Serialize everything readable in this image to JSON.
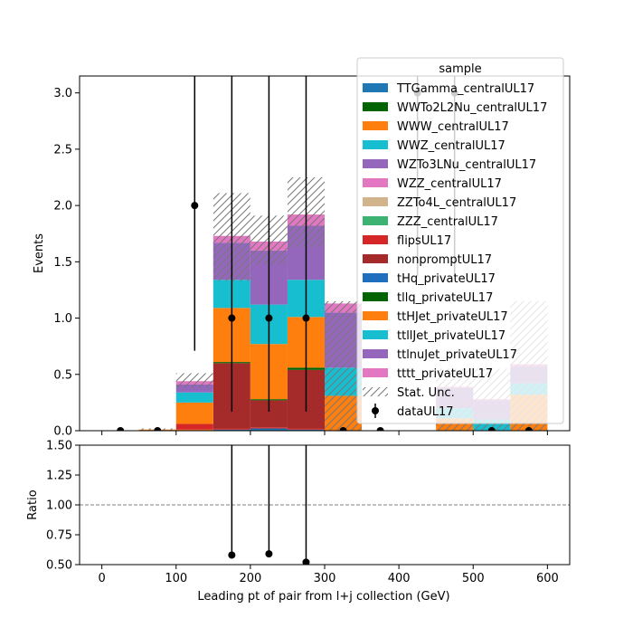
{
  "chart_data": [
    {
      "type": "bar",
      "stacked": true,
      "bin_edges": [
        0,
        50,
        100,
        150,
        200,
        250,
        300,
        350,
        400,
        450,
        500,
        550,
        600
      ],
      "xlim": [
        -30,
        630
      ],
      "ylim": [
        0,
        3.15
      ],
      "xticks": [
        "0",
        "100",
        "200",
        "300",
        "400",
        "500",
        "600"
      ],
      "yticks": [
        "0.0",
        "0.5",
        "1.0",
        "1.5",
        "2.0",
        "2.5",
        "3.0"
      ],
      "ylabel": "Events",
      "legend_title": "sample",
      "legend_position": "top-right",
      "series": [
        {
          "name": "TTGamma_centralUL17",
          "color": "#1f77b4",
          "values": [
            0,
            0,
            0,
            0.01,
            0.02,
            0.01,
            0,
            0,
            0,
            0,
            0,
            0
          ]
        },
        {
          "name": "WWTo2L2Nu_centralUL17",
          "color": "#006400",
          "values": [
            0,
            0,
            0,
            0,
            0,
            0,
            0,
            0,
            0,
            0,
            0,
            0
          ]
        },
        {
          "name": "WWW_centralUL17",
          "color": "#ff7f0e",
          "values": [
            0,
            0,
            0.01,
            0,
            0,
            0,
            0,
            0,
            0,
            0,
            0,
            0
          ]
        },
        {
          "name": "WWZ_centralUL17",
          "color": "#17becf",
          "values": [
            0,
            0,
            0,
            0,
            0,
            0,
            0,
            0,
            0,
            0,
            0,
            0
          ]
        },
        {
          "name": "WZTo3LNu_centralUL17",
          "color": "#9467bd",
          "values": [
            0,
            0,
            0,
            0,
            0,
            0,
            0,
            0,
            0,
            0,
            0,
            0
          ]
        },
        {
          "name": "WZZ_centralUL17",
          "color": "#e377c2",
          "values": [
            0,
            0,
            0,
            0,
            0,
            0,
            0,
            0,
            0,
            0,
            0,
            0
          ]
        },
        {
          "name": "ZZTo4L_centralUL17",
          "color": "#d2b48c",
          "values": [
            0,
            0,
            0,
            0,
            0,
            0,
            0,
            0,
            0,
            0,
            0,
            0
          ]
        },
        {
          "name": "ZZZ_centralUL17",
          "color": "#3cb371",
          "values": [
            0,
            0,
            0,
            0,
            0,
            0,
            0,
            0,
            0,
            0,
            0,
            0
          ]
        },
        {
          "name": "flipsUL17",
          "color": "#d62728",
          "values": [
            0,
            0,
            0.05,
            0.01,
            0.01,
            0.01,
            0,
            0,
            0,
            0,
            0,
            0
          ]
        },
        {
          "name": "nonpromptUL17",
          "color": "#a52a2a",
          "values": [
            0,
            0,
            0,
            0.58,
            0.24,
            0.52,
            0,
            0,
            0,
            0,
            0,
            0
          ]
        },
        {
          "name": "tHq_privateUL17",
          "color": "#1f6fbf",
          "values": [
            0,
            0,
            0,
            0,
            0,
            0,
            0,
            0,
            0,
            0,
            0,
            0
          ]
        },
        {
          "name": "tllq_privateUL17",
          "color": "#006400",
          "values": [
            0,
            0,
            0,
            0.01,
            0.01,
            0.02,
            0,
            0,
            0,
            0,
            0,
            0
          ]
        },
        {
          "name": "ttHJet_privateUL17",
          "color": "#ff7f0e",
          "values": [
            0,
            0.01,
            0.19,
            0.48,
            0.49,
            0.45,
            0.31,
            0,
            0,
            0.11,
            0,
            0.32
          ]
        },
        {
          "name": "ttllJet_privateUL17",
          "color": "#17becf",
          "values": [
            0,
            0,
            0.09,
            0.25,
            0.35,
            0.33,
            0.25,
            0,
            0,
            0.09,
            0.1,
            0.1
          ]
        },
        {
          "name": "ttlnuJet_privateUL17",
          "color": "#9467bd",
          "values": [
            0,
            0,
            0.07,
            0.33,
            0.48,
            0.48,
            0.49,
            0,
            0,
            0.18,
            0.17,
            0.15
          ]
        },
        {
          "name": "tttt_privateUL17",
          "color": "#e377c2",
          "values": [
            0,
            0,
            0.03,
            0.06,
            0.08,
            0.1,
            0.08,
            0,
            0,
            0.01,
            0.01,
            0.02
          ]
        }
      ],
      "stat_unc": {
        "name": "Stat. Unc.",
        "low": [
          0,
          0,
          0.38,
          1.33,
          1.48,
          1.63,
          0.0,
          0,
          0,
          0.0,
          0.0,
          0.0
        ],
        "high": [
          0,
          0.02,
          0.51,
          2.11,
          1.91,
          2.25,
          1.15,
          0,
          0,
          0.55,
          0.55,
          1.15
        ]
      },
      "data": {
        "name": "dataUL17",
        "color": "#000000",
        "values": [
          0,
          0,
          2,
          1,
          1,
          1,
          0,
          0,
          3,
          3,
          0,
          0
        ],
        "err_low": [
          0,
          0,
          1.29,
          0.83,
          0.83,
          0.83,
          0,
          0,
          1.63,
          1.63,
          0,
          0
        ],
        "err_high": [
          0,
          0,
          2.64,
          2.3,
          2.3,
          2.3,
          0,
          0,
          2.92,
          2.92,
          0,
          0
        ]
      }
    },
    {
      "type": "scatter",
      "xlim": [
        -30,
        630
      ],
      "ylim": [
        0.5,
        1.5
      ],
      "xticks": [
        "0",
        "100",
        "200",
        "300",
        "400",
        "500",
        "600"
      ],
      "yticks": [
        "0.50",
        "0.75",
        "1.00",
        "1.25",
        "1.50"
      ],
      "xlabel": "Leading pt of pair from l+j collection (GeV)",
      "ylabel": "Ratio",
      "reference_line": 1.0,
      "x": [
        175,
        225,
        275
      ],
      "y": [
        0.58,
        0.59,
        0.52
      ],
      "err_high": [
        2.0,
        2.0,
        2.0
      ]
    }
  ]
}
